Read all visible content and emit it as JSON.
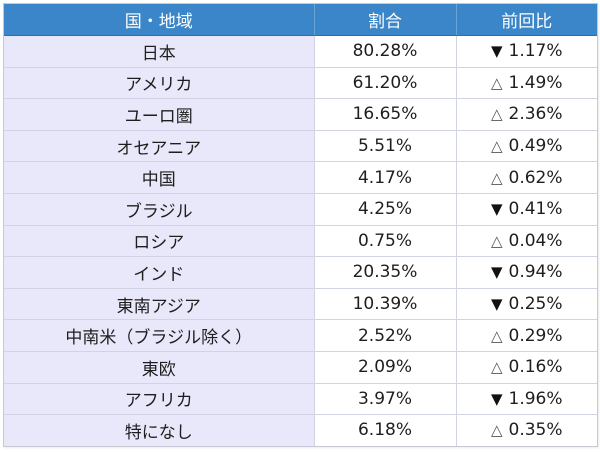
{
  "table": {
    "headers": [
      "国・地域",
      "割合",
      "前回比"
    ],
    "colors": {
      "header_bg": "#3a86c8",
      "region_bg": "#e8e8fa",
      "cell_bg": "#ffffff"
    },
    "rows": [
      {
        "region": "日本",
        "share": "80.28%",
        "change_mark": "▼",
        "change_dir": "down",
        "change": "1.17%"
      },
      {
        "region": "アメリカ",
        "share": "61.20%",
        "change_mark": "△",
        "change_dir": "up",
        "change": "1.49%"
      },
      {
        "region": "ユーロ圏",
        "share": "16.65%",
        "change_mark": "△",
        "change_dir": "up",
        "change": "2.36%"
      },
      {
        "region": "オセアニア",
        "share": "5.51%",
        "change_mark": "△",
        "change_dir": "up",
        "change": "0.49%"
      },
      {
        "region": "中国",
        "share": "4.17%",
        "change_mark": "△",
        "change_dir": "up",
        "change": "0.62%"
      },
      {
        "region": "ブラジル",
        "share": "4.25%",
        "change_mark": "▼",
        "change_dir": "down",
        "change": "0.41%"
      },
      {
        "region": "ロシア",
        "share": "0.75%",
        "change_mark": "△",
        "change_dir": "up",
        "change": "0.04%"
      },
      {
        "region": "インド",
        "share": "20.35%",
        "change_mark": "▼",
        "change_dir": "down",
        "change": "0.94%"
      },
      {
        "region": "東南アジア",
        "share": "10.39%",
        "change_mark": "▼",
        "change_dir": "down",
        "change": "0.25%"
      },
      {
        "region": "中南米（ブラジル除く）",
        "share": "2.52%",
        "change_mark": "△",
        "change_dir": "up",
        "change": "0.29%"
      },
      {
        "region": "東欧",
        "share": "2.09%",
        "change_mark": "△",
        "change_dir": "up",
        "change": "0.16%"
      },
      {
        "region": "アフリカ",
        "share": "3.97%",
        "change_mark": "▼",
        "change_dir": "down",
        "change": "1.96%"
      },
      {
        "region": "特になし",
        "share": "6.18%",
        "change_mark": "△",
        "change_dir": "up",
        "change": "0.35%"
      }
    ]
  }
}
